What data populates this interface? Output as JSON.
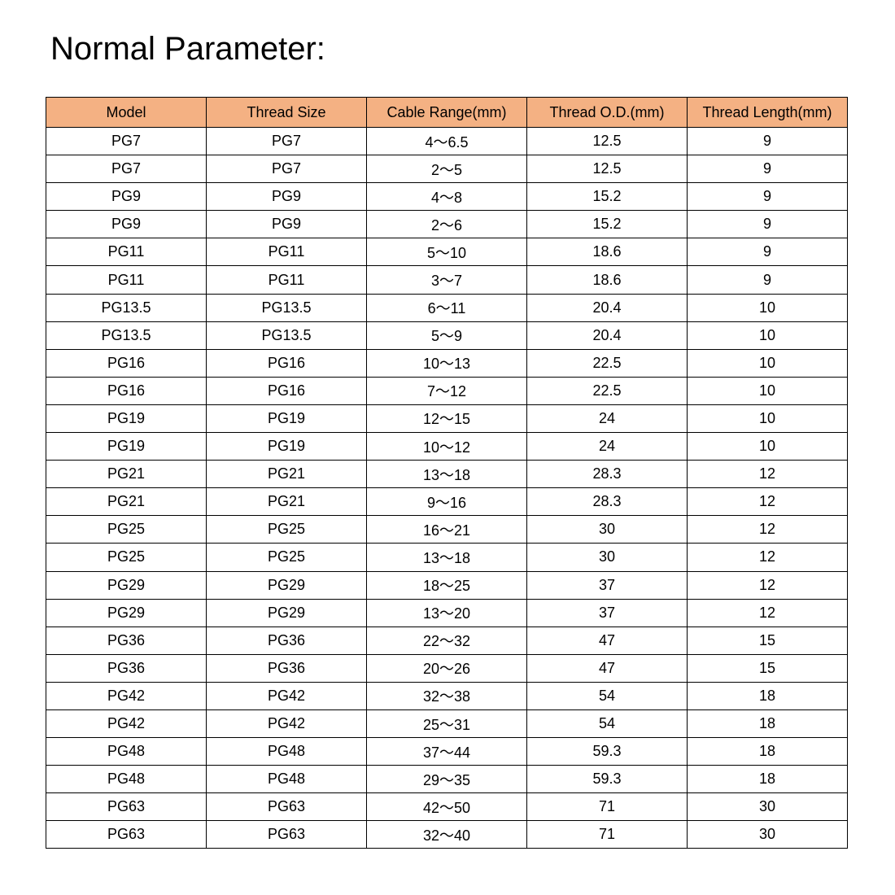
{
  "title": "Normal Parameter:",
  "header_color": "#F4B183",
  "columns": [
    "Model",
    "Thread Size",
    "Cable Range(mm)",
    "Thread O.D.(mm)",
    "Thread Length(mm)"
  ],
  "rows": [
    [
      "PG7",
      "PG7",
      "4～6.5",
      "12.5",
      "9"
    ],
    [
      "PG7",
      "PG7",
      "2～5",
      "12.5",
      "9"
    ],
    [
      "PG9",
      "PG9",
      "4～8",
      "15.2",
      "9"
    ],
    [
      "PG9",
      "PG9",
      "2～6",
      "15.2",
      "9"
    ],
    [
      "PG11",
      "PG11",
      "5～10",
      "18.6",
      "9"
    ],
    [
      "PG11",
      "PG11",
      "3～7",
      "18.6",
      "9"
    ],
    [
      "PG13.5",
      "PG13.5",
      "6～11",
      "20.4",
      "10"
    ],
    [
      "PG13.5",
      "PG13.5",
      "5～9",
      "20.4",
      "10"
    ],
    [
      "PG16",
      "PG16",
      "10～13",
      "22.5",
      "10"
    ],
    [
      "PG16",
      "PG16",
      "7～12",
      "22.5",
      "10"
    ],
    [
      "PG19",
      "PG19",
      "12～15",
      "24",
      "10"
    ],
    [
      "PG19",
      "PG19",
      "10～12",
      "24",
      "10"
    ],
    [
      "PG21",
      "PG21",
      "13～18",
      "28.3",
      "12"
    ],
    [
      "PG21",
      "PG21",
      "9～16",
      "28.3",
      "12"
    ],
    [
      "PG25",
      "PG25",
      "16～21",
      "30",
      "12"
    ],
    [
      "PG25",
      "PG25",
      "13～18",
      "30",
      "12"
    ],
    [
      "PG29",
      "PG29",
      "18～25",
      "37",
      "12"
    ],
    [
      "PG29",
      "PG29",
      "13～20",
      "37",
      "12"
    ],
    [
      "PG36",
      "PG36",
      "22～32",
      "47",
      "15"
    ],
    [
      "PG36",
      "PG36",
      "20～26",
      "47",
      "15"
    ],
    [
      "PG42",
      "PG42",
      "32～38",
      "54",
      "18"
    ],
    [
      "PG42",
      "PG42",
      "25～31",
      "54",
      "18"
    ],
    [
      "PG48",
      "PG48",
      "37～44",
      "59.3",
      "18"
    ],
    [
      "PG48",
      "PG48",
      "29～35",
      "59.3",
      "18"
    ],
    [
      "PG63",
      "PG63",
      "42～50",
      "71",
      "30"
    ],
    [
      "PG63",
      "PG63",
      "32～40",
      "71",
      "30"
    ]
  ]
}
